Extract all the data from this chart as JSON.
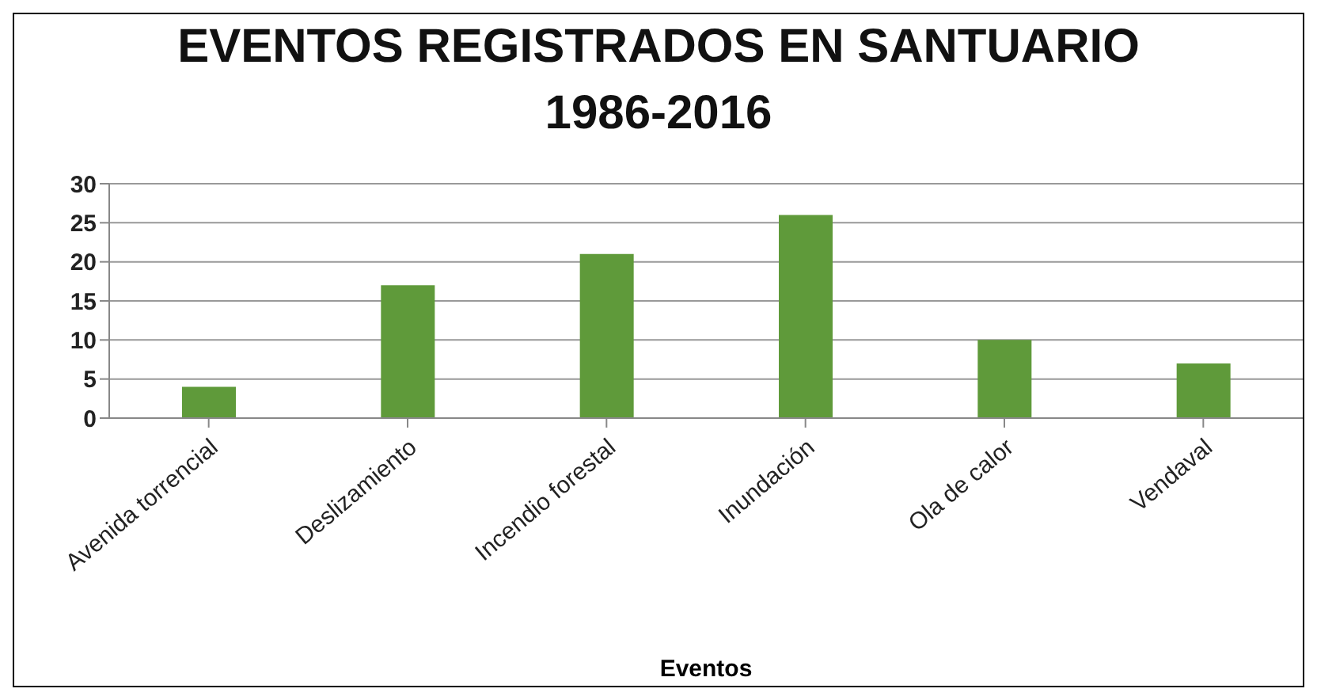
{
  "chart_data": {
    "type": "bar",
    "title": "EVENTOS REGISTRADOS EN SANTUARIO",
    "subtitle": "1986-2016",
    "xlabel": "Eventos",
    "categories": [
      "Avenida torrencial",
      "Deslizamiento",
      "Incendio forestal",
      "Inundación",
      "Ola de calor",
      "Vendaval"
    ],
    "values": [
      4,
      17,
      21,
      26,
      10,
      7
    ],
    "color": "#5f9a3a",
    "ylim": [
      0,
      30
    ],
    "yticks": [
      0,
      5,
      10,
      15,
      20,
      25,
      30
    ],
    "grid": "y"
  }
}
